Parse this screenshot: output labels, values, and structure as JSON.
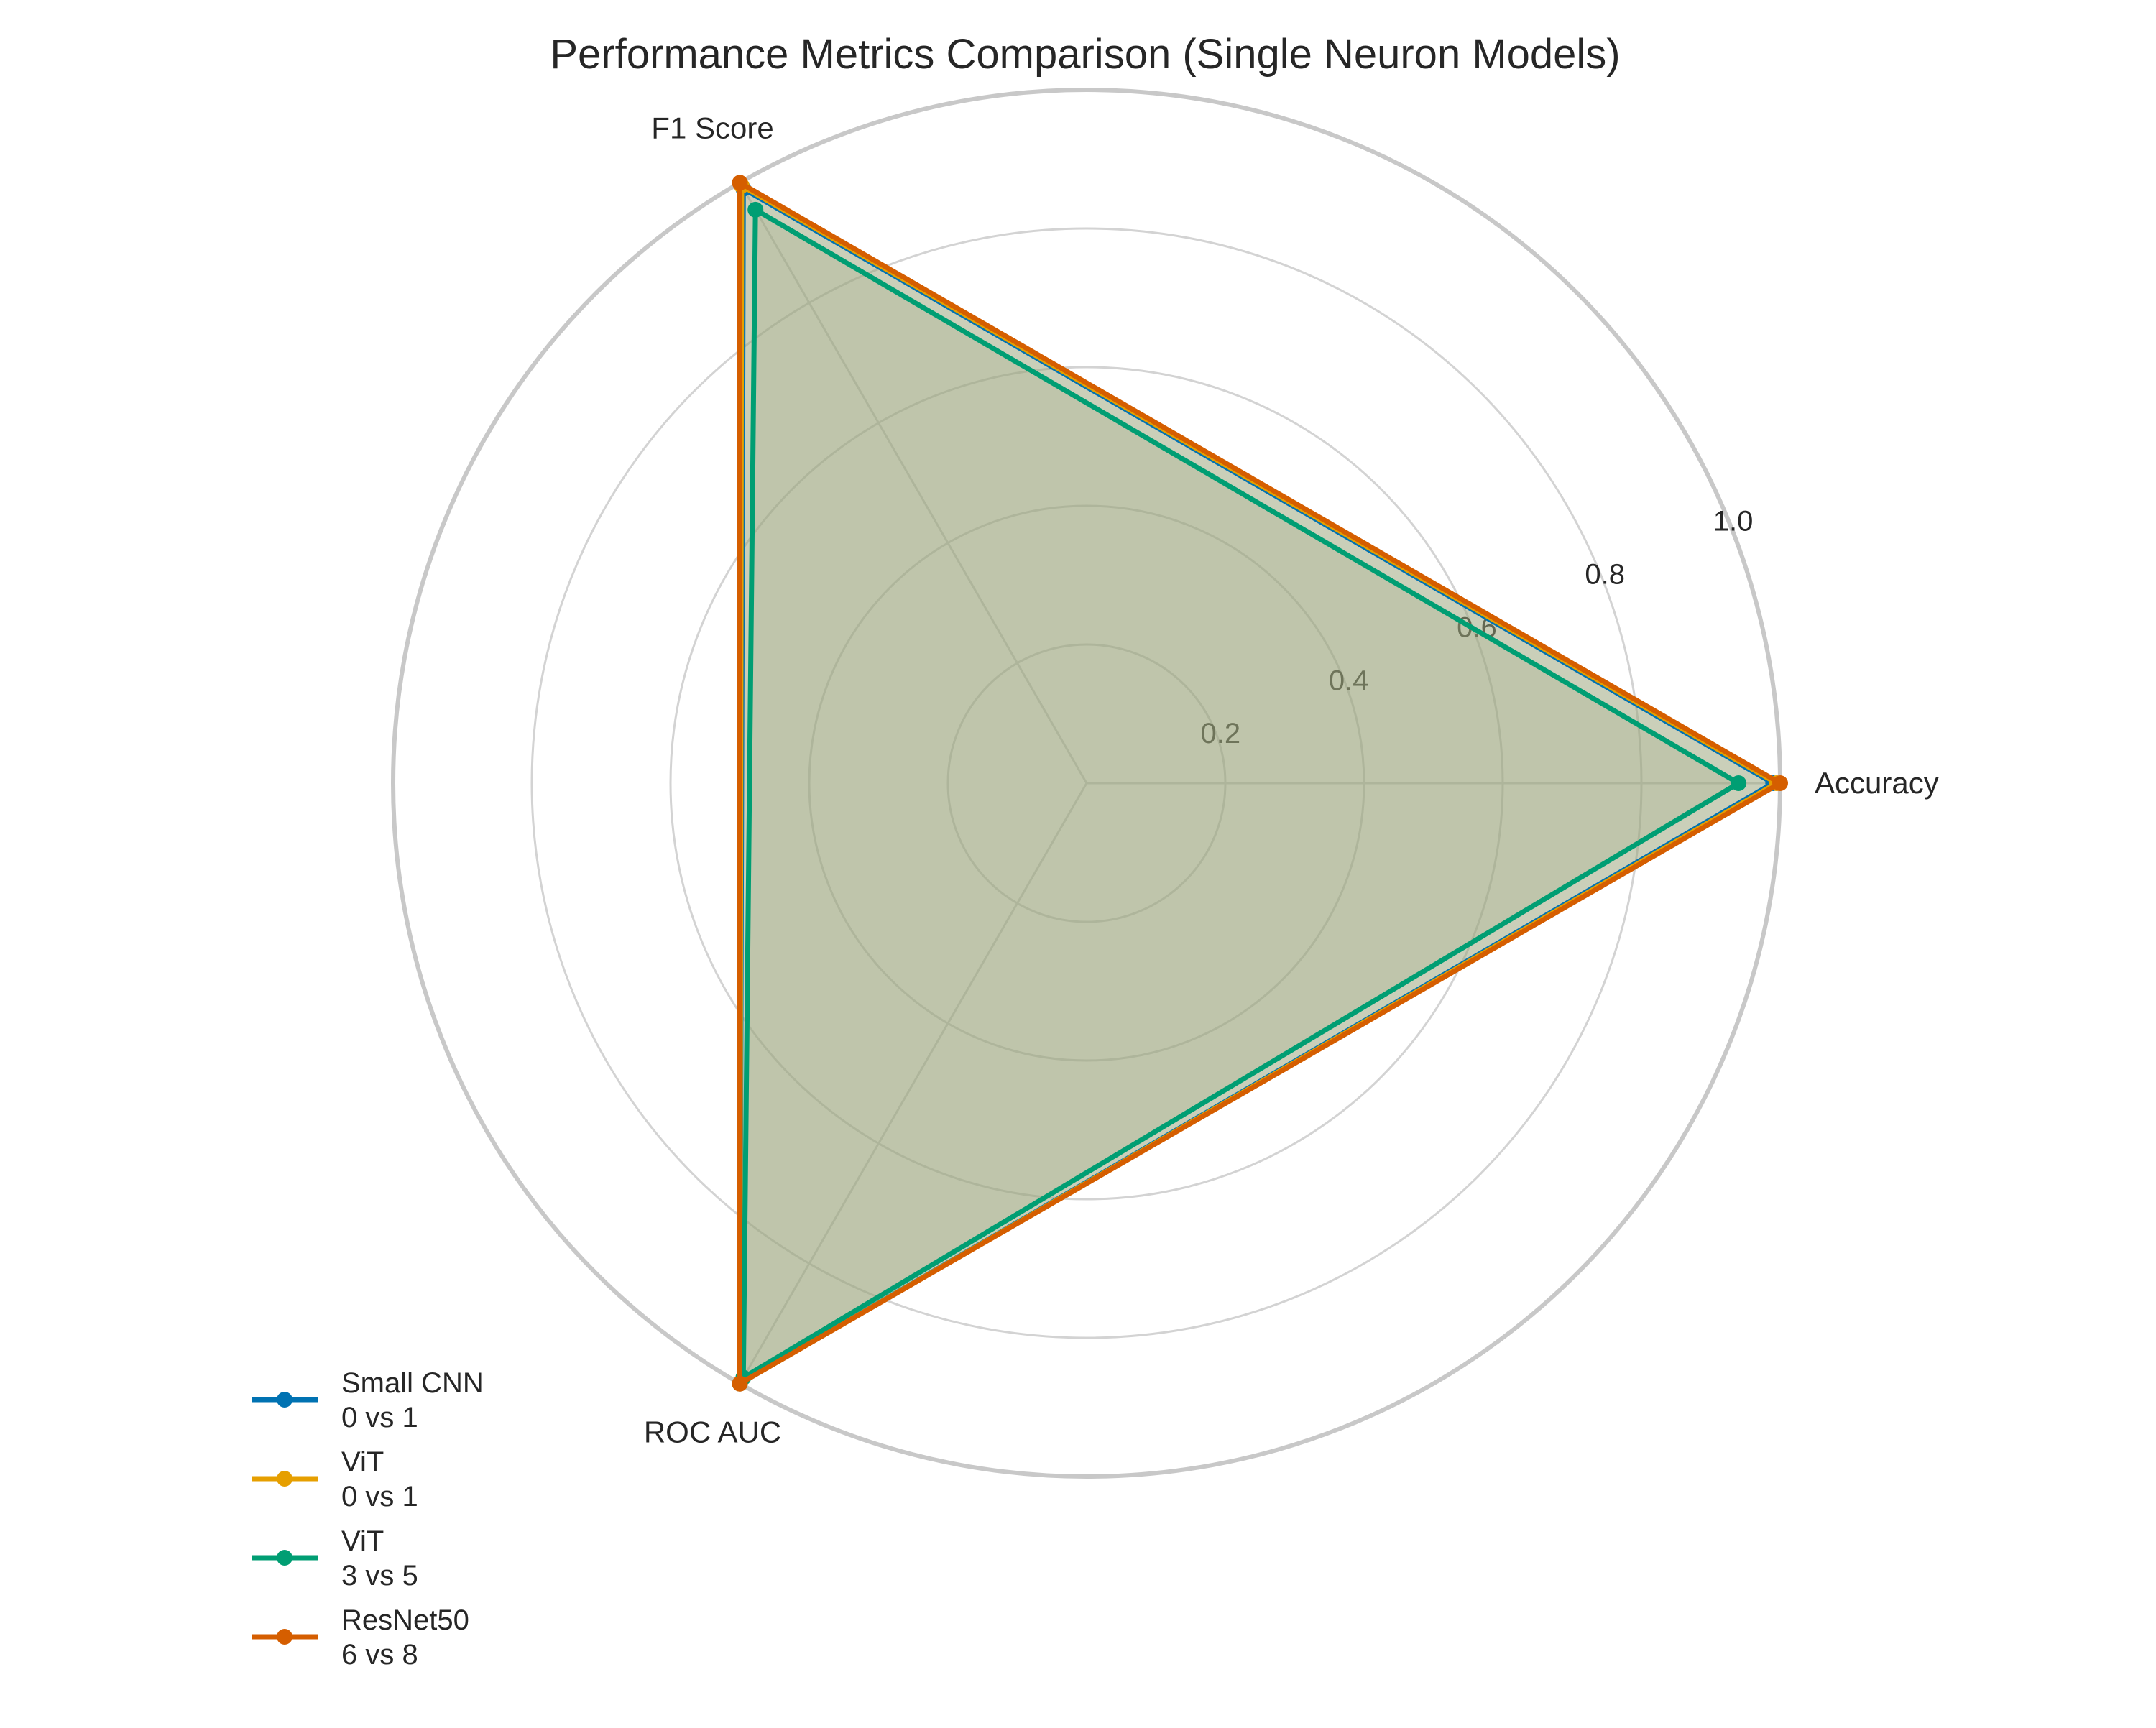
{
  "chart_data": {
    "type": "radar",
    "title": "Performance Metrics Comparison (Single Neuron Models)",
    "axes": [
      "Accuracy",
      "F1 Score",
      "ROC AUC"
    ],
    "radial_ticks": [
      0.2,
      0.4,
      0.6,
      0.8,
      1.0
    ],
    "radial_tick_labels": [
      "0.2",
      "0.4",
      "0.6",
      "0.8",
      "1.0"
    ],
    "rlim": [
      0,
      1.0
    ],
    "grid": true,
    "legend_position": "lower-left",
    "series": [
      {
        "name": "Small CNN\n0 vs 1",
        "color": "#0072B2",
        "values": [
          0.99,
          0.99,
          1.0
        ]
      },
      {
        "name": "ViT\n0 vs 1",
        "color": "#E69F00",
        "values": [
          0.995,
          0.995,
          1.0
        ]
      },
      {
        "name": "ViT\n3 vs 5",
        "color": "#009E73",
        "values": [
          0.94,
          0.955,
          0.99
        ]
      },
      {
        "name": "ResNet50\n6 vs 8",
        "color": "#D55E00",
        "values": [
          1.0,
          1.0,
          1.0
        ]
      }
    ],
    "fill_color": "#9aa27a"
  }
}
